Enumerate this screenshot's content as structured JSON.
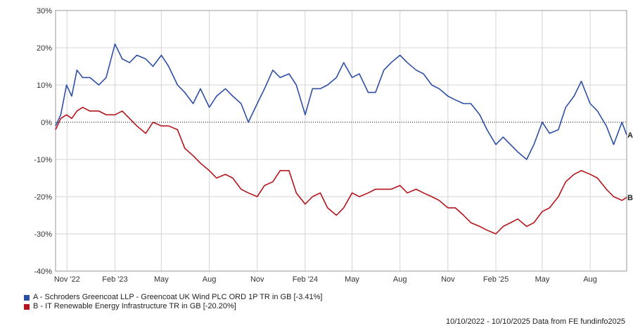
{
  "chart_data": {
    "type": "line",
    "ylim": [
      -40,
      30
    ],
    "yticks": [
      30,
      20,
      10,
      0,
      -10,
      -20,
      -30,
      -40
    ],
    "ytick_labels": [
      "30%",
      "20%",
      "10%",
      "0%",
      "-10%",
      "-20%",
      "-30%",
      "-40%"
    ],
    "xlim": [
      "2022-10-10",
      "2025-10-10"
    ],
    "xticks": [
      {
        "date": "2022-11-01",
        "label": "Nov '22"
      },
      {
        "date": "2023-02-01",
        "label": "Feb '23"
      },
      {
        "date": "2023-05-01",
        "label": "May"
      },
      {
        "date": "2023-08-01",
        "label": "Aug"
      },
      {
        "date": "2023-11-01",
        "label": "Nov"
      },
      {
        "date": "2024-02-01",
        "label": "Feb '24"
      },
      {
        "date": "2024-05-01",
        "label": "May"
      },
      {
        "date": "2024-08-01",
        "label": "Aug"
      },
      {
        "date": "2024-11-01",
        "label": "Nov"
      },
      {
        "date": "2025-02-01",
        "label": "Feb '25"
      },
      {
        "date": "2025-05-01",
        "label": "May"
      },
      {
        "date": "2025-08-01",
        "label": "Aug"
      }
    ],
    "grid": true,
    "zero_line": "dotted",
    "series": [
      {
        "label": "A",
        "name": "A - Schroders Greencoat LLP - Greencoat UK Wind PLC ORD 1P TR in GB [-3.41%]",
        "color": "#2f4fa5",
        "points": [
          [
            "2022-10-10",
            -1
          ],
          [
            "2022-10-20",
            2
          ],
          [
            "2022-10-31",
            10
          ],
          [
            "2022-11-10",
            7
          ],
          [
            "2022-11-20",
            14
          ],
          [
            "2022-12-01",
            12
          ],
          [
            "2022-12-15",
            12
          ],
          [
            "2023-01-01",
            10
          ],
          [
            "2023-01-15",
            12
          ],
          [
            "2023-02-01",
            21
          ],
          [
            "2023-02-15",
            17
          ],
          [
            "2023-03-01",
            16
          ],
          [
            "2023-03-15",
            18
          ],
          [
            "2023-04-01",
            17
          ],
          [
            "2023-04-15",
            15
          ],
          [
            "2023-05-01",
            18
          ],
          [
            "2023-05-15",
            15
          ],
          [
            "2023-06-01",
            10
          ],
          [
            "2023-06-15",
            8
          ],
          [
            "2023-07-01",
            5
          ],
          [
            "2023-07-15",
            9
          ],
          [
            "2023-08-01",
            4
          ],
          [
            "2023-08-15",
            7
          ],
          [
            "2023-09-01",
            9
          ],
          [
            "2023-09-15",
            7
          ],
          [
            "2023-10-01",
            5
          ],
          [
            "2023-10-15",
            0
          ],
          [
            "2023-11-01",
            5
          ],
          [
            "2023-11-15",
            9
          ],
          [
            "2023-12-01",
            14
          ],
          [
            "2023-12-15",
            12
          ],
          [
            "2024-01-01",
            13
          ],
          [
            "2024-01-15",
            10
          ],
          [
            "2024-02-01",
            2
          ],
          [
            "2024-02-15",
            9
          ],
          [
            "2024-03-01",
            9
          ],
          [
            "2024-03-15",
            10
          ],
          [
            "2024-04-01",
            12
          ],
          [
            "2024-04-15",
            16
          ],
          [
            "2024-05-01",
            12
          ],
          [
            "2024-05-15",
            13
          ],
          [
            "2024-06-01",
            8
          ],
          [
            "2024-06-15",
            8
          ],
          [
            "2024-07-01",
            14
          ],
          [
            "2024-07-15",
            16
          ],
          [
            "2024-08-01",
            18
          ],
          [
            "2024-08-15",
            16
          ],
          [
            "2024-09-01",
            14
          ],
          [
            "2024-09-15",
            13
          ],
          [
            "2024-10-01",
            10
          ],
          [
            "2024-10-15",
            9
          ],
          [
            "2024-11-01",
            7
          ],
          [
            "2024-11-15",
            6
          ],
          [
            "2024-12-01",
            5
          ],
          [
            "2024-12-15",
            5
          ],
          [
            "2025-01-01",
            2
          ],
          [
            "2025-01-15",
            -2
          ],
          [
            "2025-02-01",
            -6
          ],
          [
            "2025-02-15",
            -4
          ],
          [
            "2025-03-01",
            -6
          ],
          [
            "2025-03-15",
            -8
          ],
          [
            "2025-04-01",
            -10
          ],
          [
            "2025-04-15",
            -6
          ],
          [
            "2025-05-01",
            0
          ],
          [
            "2025-05-15",
            -3
          ],
          [
            "2025-06-01",
            -2
          ],
          [
            "2025-06-15",
            4
          ],
          [
            "2025-07-01",
            7
          ],
          [
            "2025-07-15",
            11
          ],
          [
            "2025-08-01",
            5
          ],
          [
            "2025-08-15",
            3
          ],
          [
            "2025-09-01",
            -1
          ],
          [
            "2025-09-15",
            -6
          ],
          [
            "2025-10-01",
            0
          ],
          [
            "2025-10-10",
            -3.41
          ]
        ]
      },
      {
        "label": "B",
        "name": "B - IT Renewable Energy Infrastructure TR in GB [-20.20%]",
        "color": "#b3141b",
        "points": [
          [
            "2022-10-10",
            -2
          ],
          [
            "2022-10-20",
            1
          ],
          [
            "2022-10-31",
            2
          ],
          [
            "2022-11-10",
            1
          ],
          [
            "2022-11-20",
            3
          ],
          [
            "2022-12-01",
            4
          ],
          [
            "2022-12-15",
            3
          ],
          [
            "2023-01-01",
            3
          ],
          [
            "2023-01-15",
            2
          ],
          [
            "2023-02-01",
            2
          ],
          [
            "2023-02-15",
            3
          ],
          [
            "2023-03-01",
            1
          ],
          [
            "2023-03-15",
            -1
          ],
          [
            "2023-04-01",
            -3
          ],
          [
            "2023-04-15",
            0
          ],
          [
            "2023-05-01",
            -1
          ],
          [
            "2023-05-15",
            -1
          ],
          [
            "2023-06-01",
            -2
          ],
          [
            "2023-06-15",
            -7
          ],
          [
            "2023-07-01",
            -9
          ],
          [
            "2023-07-15",
            -11
          ],
          [
            "2023-08-01",
            -13
          ],
          [
            "2023-08-15",
            -15
          ],
          [
            "2023-09-01",
            -14
          ],
          [
            "2023-09-15",
            -15
          ],
          [
            "2023-10-01",
            -18
          ],
          [
            "2023-10-15",
            -19
          ],
          [
            "2023-11-01",
            -20
          ],
          [
            "2023-11-15",
            -17
          ],
          [
            "2023-12-01",
            -16
          ],
          [
            "2023-12-15",
            -13
          ],
          [
            "2024-01-01",
            -13
          ],
          [
            "2024-01-15",
            -19
          ],
          [
            "2024-02-01",
            -22
          ],
          [
            "2024-02-15",
            -20
          ],
          [
            "2024-03-01",
            -19
          ],
          [
            "2024-03-15",
            -23
          ],
          [
            "2024-04-01",
            -25
          ],
          [
            "2024-04-15",
            -23
          ],
          [
            "2024-05-01",
            -19
          ],
          [
            "2024-05-15",
            -20
          ],
          [
            "2024-06-01",
            -19
          ],
          [
            "2024-06-15",
            -18
          ],
          [
            "2024-07-01",
            -18
          ],
          [
            "2024-07-15",
            -18
          ],
          [
            "2024-08-01",
            -17
          ],
          [
            "2024-08-15",
            -19
          ],
          [
            "2024-09-01",
            -18
          ],
          [
            "2024-09-15",
            -19
          ],
          [
            "2024-10-01",
            -20
          ],
          [
            "2024-10-15",
            -21
          ],
          [
            "2024-11-01",
            -23
          ],
          [
            "2024-11-15",
            -23
          ],
          [
            "2024-12-01",
            -25
          ],
          [
            "2024-12-15",
            -27
          ],
          [
            "2025-01-01",
            -28
          ],
          [
            "2025-01-15",
            -29
          ],
          [
            "2025-02-01",
            -30
          ],
          [
            "2025-02-15",
            -28
          ],
          [
            "2025-03-01",
            -27
          ],
          [
            "2025-03-15",
            -26
          ],
          [
            "2025-04-01",
            -28
          ],
          [
            "2025-04-15",
            -27
          ],
          [
            "2025-05-01",
            -24
          ],
          [
            "2025-05-15",
            -23
          ],
          [
            "2025-06-01",
            -20
          ],
          [
            "2025-06-15",
            -16
          ],
          [
            "2025-07-01",
            -14
          ],
          [
            "2025-07-15",
            -13
          ],
          [
            "2025-08-01",
            -14
          ],
          [
            "2025-08-15",
            -15
          ],
          [
            "2025-09-01",
            -18
          ],
          [
            "2025-09-15",
            -20
          ],
          [
            "2025-10-01",
            -21
          ],
          [
            "2025-10-10",
            -20.2
          ]
        ]
      }
    ]
  },
  "legend": {
    "a": "A - Schroders Greencoat LLP - Greencoat UK Wind PLC ORD 1P TR in GB [-3.41%]",
    "b": "B - IT Renewable Energy Infrastructure TR in GB [-20.20%]"
  },
  "footer": "10/10/2022 - 10/10/2025 Data from FE fundinfo2025"
}
